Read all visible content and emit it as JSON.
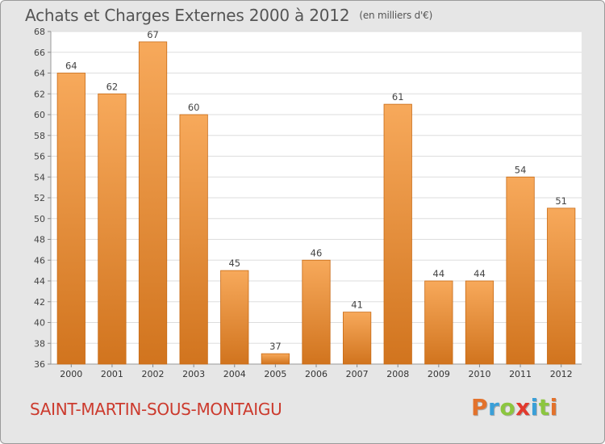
{
  "title": "Achats et Charges Externes 2000 à 2012",
  "unit": "(en milliers d'€)",
  "location": "SAINT-MARTIN-SOUS-MONTAIGU",
  "brand": {
    "letters": [
      "P",
      "r",
      "o",
      "x",
      "i",
      "t",
      "i"
    ],
    "colors": [
      "#e3722c",
      "#3a9fd8",
      "#8cc63f",
      "#e23a2e",
      "#3a9fd8",
      "#8cc63f",
      "#e3722c"
    ]
  },
  "colors": {
    "bar_light": "#f7a95b",
    "bar_dark": "#d1741e",
    "bar_edge": "#c86a14",
    "plot_bg": "#ffffff",
    "grid": "#dddddd"
  },
  "chart_data": {
    "type": "bar",
    "categories": [
      "2000",
      "2001",
      "2002",
      "2003",
      "2004",
      "2005",
      "2006",
      "2007",
      "2008",
      "2009",
      "2010",
      "2011",
      "2012"
    ],
    "values": [
      64,
      62,
      67,
      60,
      45,
      37,
      46,
      41,
      61,
      44,
      44,
      54,
      51
    ],
    "ylim": [
      36,
      68
    ],
    "yticks": [
      36,
      38,
      40,
      42,
      44,
      46,
      48,
      50,
      52,
      54,
      56,
      58,
      60,
      62,
      64,
      66,
      68
    ],
    "grid": true,
    "data_labels": true
  }
}
